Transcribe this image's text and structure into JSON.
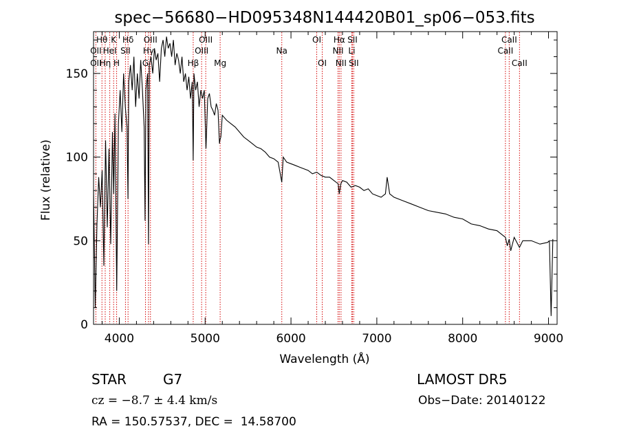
{
  "chart_data": {
    "type": "line",
    "title": "spec−56680−HD095348N144420B01_sp06−053.fits",
    "xlabel": "Wavelength (Å)",
    "ylabel": "Flux (relative)",
    "xlim": [
      3700,
      9100
    ],
    "ylim": [
      0,
      175
    ],
    "x_ticks": [
      4000,
      5000,
      6000,
      7000,
      8000,
      9000
    ],
    "y_ticks": [
      0,
      50,
      100,
      150
    ],
    "grid": false,
    "series": [
      {
        "x": [
          3700,
          3720,
          3740,
          3760,
          3780,
          3800,
          3820,
          3840,
          3860,
          3880,
          3900,
          3920,
          3935,
          3950,
          3970,
          3990,
          4010,
          4030,
          4050,
          4070,
          4090,
          4101,
          4110,
          4130,
          4150,
          4170,
          4190,
          4210,
          4230,
          4250,
          4270,
          4290,
          4300,
          4310,
          4330,
          4340,
          4350,
          4370,
          4390,
          4410,
          4430,
          4450,
          4470,
          4490,
          4510,
          4530,
          4550,
          4570,
          4590,
          4610,
          4630,
          4650,
          4670,
          4690,
          4710,
          4730,
          4750,
          4770,
          4790,
          4810,
          4830,
          4850,
          4861,
          4870,
          4890,
          4910,
          4930,
          4950,
          4970,
          4990,
          5010,
          5030,
          5050,
          5070,
          5090,
          5110,
          5130,
          5150,
          5167,
          5172,
          5183,
          5200,
          5250,
          5300,
          5350,
          5400,
          5450,
          5500,
          5550,
          5600,
          5650,
          5700,
          5750,
          5800,
          5850,
          5893,
          5910,
          5950,
          6000,
          6050,
          6100,
          6150,
          6200,
          6250,
          6300,
          6350,
          6400,
          6450,
          6500,
          6550,
          6563,
          6580,
          6600,
          6650,
          6700,
          6750,
          6800,
          6850,
          6900,
          6950,
          7000,
          7050,
          7100,
          7120,
          7150,
          7200,
          7300,
          7400,
          7500,
          7600,
          7700,
          7800,
          7900,
          8000,
          8100,
          8200,
          8300,
          8400,
          8498,
          8520,
          8542,
          8560,
          8600,
          8662,
          8700,
          8800,
          8900,
          8990,
          9010,
          9030,
          9050
        ],
        "y": [
          80,
          10,
          60,
          88,
          70,
          92,
          35,
          110,
          58,
          105,
          48,
          115,
          78,
          126,
          20,
          120,
          140,
          115,
          150,
          130,
          118,
          75,
          145,
          155,
          140,
          160,
          130,
          150,
          135,
          158,
          140,
          118,
          62,
          140,
          150,
          48,
          155,
          160,
          150,
          165,
          158,
          162,
          145,
          165,
          170,
          160,
          172,
          165,
          168,
          160,
          170,
          155,
          162,
          158,
          150,
          160,
          145,
          150,
          140,
          148,
          135,
          145,
          98,
          150,
          140,
          145,
          130,
          140,
          135,
          140,
          105,
          135,
          138,
          130,
          128,
          125,
          132,
          128,
          108,
          110,
          112,
          125,
          122,
          120,
          118,
          115,
          112,
          110,
          108,
          106,
          105,
          103,
          100,
          99,
          97,
          85,
          100,
          97,
          96,
          95,
          94,
          93,
          92,
          90,
          91,
          89,
          88,
          88,
          86,
          84,
          78,
          84,
          86,
          85,
          82,
          83,
          82,
          80,
          81,
          78,
          77,
          76,
          78,
          88,
          78,
          76,
          74,
          72,
          70,
          68,
          67,
          66,
          64,
          63,
          60,
          59,
          57,
          56,
          52,
          47,
          51,
          44,
          52,
          46,
          50,
          50,
          48,
          49,
          50,
          5,
          51
        ]
      }
    ],
    "spectral_lines": [
      {
        "label": "Hθ",
        "wavelength": 3798,
        "row": 1
      },
      {
        "label": "OII",
        "wavelength": 3727,
        "row": 2
      },
      {
        "label": "OII",
        "wavelength": 3727,
        "row": 3
      },
      {
        "label": "Hη",
        "wavelength": 3836,
        "row": 3
      },
      {
        "label": "K",
        "wavelength": 3934,
        "row": 1
      },
      {
        "label": "HeI",
        "wavelength": 3889,
        "row": 2
      },
      {
        "label": "H",
        "wavelength": 3969,
        "row": 3
      },
      {
        "label": "Hδ",
        "wavelength": 4102,
        "row": 1
      },
      {
        "label": "SII",
        "wavelength": 4072,
        "row": 2
      },
      {
        "label": "OIII",
        "wavelength": 4363,
        "row": 1
      },
      {
        "label": "Hγ",
        "wavelength": 4340,
        "row": 2
      },
      {
        "label": "G",
        "wavelength": 4305,
        "row": 3
      },
      {
        "label": "OIII",
        "wavelength": 5007,
        "row": 1
      },
      {
        "label": "OIII",
        "wavelength": 4959,
        "row": 2
      },
      {
        "label": "Hβ",
        "wavelength": 4861,
        "row": 3
      },
      {
        "label": "Mg",
        "wavelength": 5175,
        "row": 3
      },
      {
        "label": "Na",
        "wavelength": 5893,
        "row": 2
      },
      {
        "label": "OI",
        "wavelength": 6300,
        "row": 1
      },
      {
        "label": "OI",
        "wavelength": 6364,
        "row": 3
      },
      {
        "label": "Hα",
        "wavelength": 6563,
        "row": 1
      },
      {
        "label": "SII",
        "wavelength": 6716,
        "row": 1
      },
      {
        "label": "NII",
        "wavelength": 6548,
        "row": 2
      },
      {
        "label": "Li",
        "wavelength": 6708,
        "row": 2
      },
      {
        "label": "NII",
        "wavelength": 6583,
        "row": 3
      },
      {
        "label": "SII",
        "wavelength": 6731,
        "row": 3
      },
      {
        "label": "CaII",
        "wavelength": 8542,
        "row": 1
      },
      {
        "label": "CaII",
        "wavelength": 8498,
        "row": 2
      },
      {
        "label": "CaII",
        "wavelength": 8662,
        "row": 3
      }
    ]
  },
  "info": {
    "object_class": "STAR",
    "subclass": "G7",
    "survey": "LAMOST DR5",
    "velocity": "cz = −8.7 ± 4.4 km/s",
    "obs_date": "Obs−Date: 20140122",
    "coords": "RA = 150.57537, DEC =  14.58700"
  },
  "colors": {
    "spectrum": "#000000",
    "line_markers": "#d40000"
  }
}
